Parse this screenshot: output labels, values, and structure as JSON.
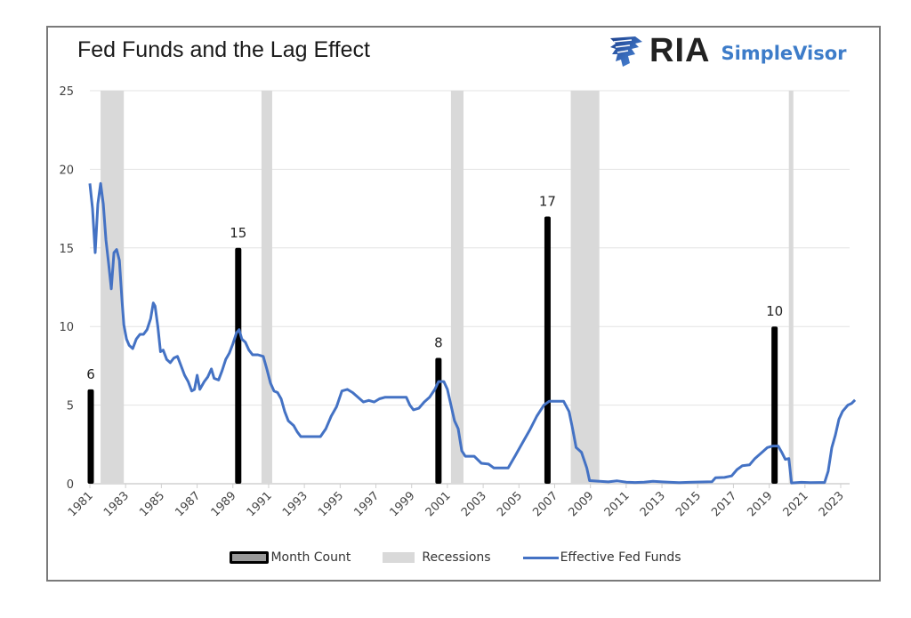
{
  "header": {
    "title": "Fed Funds and the Lag Effect",
    "logo_ria": "RIA",
    "logo_simplevisor": "SimpleVisor"
  },
  "colors": {
    "line": "#4472c4",
    "bars": "#000000",
    "recession": "#d9d9d9",
    "grid": "#e3e3e3"
  },
  "chart_data": {
    "type": "line",
    "title": "Fed Funds and the Lag Effect",
    "xlabel": "",
    "ylabel": "",
    "xlim": [
      1981,
      2024
    ],
    "ylim": [
      0,
      25
    ],
    "grid": true,
    "legend_position": "bottom",
    "y_ticks": [
      "0",
      "5",
      "10",
      "15",
      "20",
      "25"
    ],
    "x_ticks": [
      "1981",
      "1983",
      "1985",
      "1987",
      "1989",
      "1991",
      "1993",
      "1995",
      "1997",
      "1999",
      "2001",
      "2003",
      "2005",
      "2007",
      "2009",
      "2011",
      "2013",
      "2015",
      "2017",
      "2019",
      "2021",
      "2023"
    ],
    "legend": [
      "Month Count",
      "Recessions",
      "Effective Fed Funds"
    ],
    "recessions": [
      [
        1981.6,
        1982.9
      ],
      [
        1990.6,
        1991.2
      ],
      [
        2001.2,
        2001.9
      ],
      [
        2007.9,
        2009.5
      ],
      [
        2020.1,
        2020.35
      ]
    ],
    "month_count_bars": [
      {
        "x": 1981.05,
        "value": 6,
        "label": "6"
      },
      {
        "x": 1989.3,
        "value": 15,
        "label": "15"
      },
      {
        "x": 2000.5,
        "value": 8,
        "label": "8"
      },
      {
        "x": 2006.6,
        "value": 17,
        "label": "17"
      },
      {
        "x": 2019.3,
        "value": 10,
        "label": "10"
      }
    ],
    "series": [
      {
        "name": "Effective Fed Funds",
        "points": [
          [
            1981.0,
            19.1
          ],
          [
            1981.15,
            17.5
          ],
          [
            1981.3,
            14.7
          ],
          [
            1981.45,
            17.8
          ],
          [
            1981.6,
            19.1
          ],
          [
            1981.75,
            17.8
          ],
          [
            1981.9,
            15.5
          ],
          [
            1982.05,
            14.0
          ],
          [
            1982.2,
            12.4
          ],
          [
            1982.35,
            14.7
          ],
          [
            1982.5,
            14.9
          ],
          [
            1982.65,
            14.2
          ],
          [
            1982.8,
            11.6
          ],
          [
            1982.9,
            10.1
          ],
          [
            1983.05,
            9.2
          ],
          [
            1983.2,
            8.8
          ],
          [
            1983.4,
            8.6
          ],
          [
            1983.6,
            9.2
          ],
          [
            1983.8,
            9.5
          ],
          [
            1984.0,
            9.5
          ],
          [
            1984.2,
            9.8
          ],
          [
            1984.4,
            10.5
          ],
          [
            1984.55,
            11.5
          ],
          [
            1984.65,
            11.3
          ],
          [
            1984.8,
            10.0
          ],
          [
            1984.95,
            8.4
          ],
          [
            1985.1,
            8.5
          ],
          [
            1985.3,
            7.9
          ],
          [
            1985.5,
            7.7
          ],
          [
            1985.7,
            8.0
          ],
          [
            1985.9,
            8.1
          ],
          [
            1986.1,
            7.5
          ],
          [
            1986.3,
            6.9
          ],
          [
            1986.5,
            6.5
          ],
          [
            1986.7,
            5.9
          ],
          [
            1986.85,
            6.0
          ],
          [
            1987.0,
            6.9
          ],
          [
            1987.15,
            6.0
          ],
          [
            1987.4,
            6.5
          ],
          [
            1987.6,
            6.8
          ],
          [
            1987.8,
            7.3
          ],
          [
            1987.95,
            6.7
          ],
          [
            1988.2,
            6.6
          ],
          [
            1988.4,
            7.2
          ],
          [
            1988.6,
            7.9
          ],
          [
            1988.8,
            8.3
          ],
          [
            1989.0,
            8.9
          ],
          [
            1989.2,
            9.6
          ],
          [
            1989.35,
            9.8
          ],
          [
            1989.5,
            9.2
          ],
          [
            1989.7,
            9.0
          ],
          [
            1989.9,
            8.5
          ],
          [
            1990.1,
            8.2
          ],
          [
            1990.4,
            8.2
          ],
          [
            1990.7,
            8.1
          ],
          [
            1990.9,
            7.3
          ],
          [
            1991.1,
            6.4
          ],
          [
            1991.3,
            5.9
          ],
          [
            1991.5,
            5.8
          ],
          [
            1991.7,
            5.4
          ],
          [
            1991.9,
            4.6
          ],
          [
            1992.1,
            4.0
          ],
          [
            1992.4,
            3.7
          ],
          [
            1992.6,
            3.3
          ],
          [
            1992.8,
            3.0
          ],
          [
            1993.0,
            3.0
          ],
          [
            1993.3,
            3.0
          ],
          [
            1993.6,
            3.0
          ],
          [
            1993.9,
            3.0
          ],
          [
            1994.2,
            3.5
          ],
          [
            1994.5,
            4.3
          ],
          [
            1994.8,
            4.9
          ],
          [
            1995.1,
            5.9
          ],
          [
            1995.4,
            6.0
          ],
          [
            1995.7,
            5.8
          ],
          [
            1996.0,
            5.5
          ],
          [
            1996.3,
            5.2
          ],
          [
            1996.6,
            5.3
          ],
          [
            1996.9,
            5.2
          ],
          [
            1997.2,
            5.4
          ],
          [
            1997.5,
            5.5
          ],
          [
            1997.8,
            5.5
          ],
          [
            1998.1,
            5.5
          ],
          [
            1998.4,
            5.5
          ],
          [
            1998.7,
            5.5
          ],
          [
            1998.9,
            5.0
          ],
          [
            1999.1,
            4.7
          ],
          [
            1999.4,
            4.8
          ],
          [
            1999.7,
            5.2
          ],
          [
            2000.0,
            5.5
          ],
          [
            2000.3,
            6.0
          ],
          [
            2000.5,
            6.5
          ],
          [
            2000.8,
            6.5
          ],
          [
            2001.0,
            6.0
          ],
          [
            2001.2,
            5.0
          ],
          [
            2001.4,
            4.0
          ],
          [
            2001.6,
            3.5
          ],
          [
            2001.8,
            2.1
          ],
          [
            2002.0,
            1.75
          ],
          [
            2002.5,
            1.75
          ],
          [
            2002.9,
            1.3
          ],
          [
            2003.3,
            1.25
          ],
          [
            2003.6,
            1.0
          ],
          [
            2004.0,
            1.0
          ],
          [
            2004.4,
            1.0
          ],
          [
            2004.8,
            1.8
          ],
          [
            2005.2,
            2.6
          ],
          [
            2005.6,
            3.4
          ],
          [
            2006.0,
            4.3
          ],
          [
            2006.4,
            5.0
          ],
          [
            2006.7,
            5.25
          ],
          [
            2007.0,
            5.25
          ],
          [
            2007.5,
            5.25
          ],
          [
            2007.8,
            4.6
          ],
          [
            2008.0,
            3.5
          ],
          [
            2008.2,
            2.3
          ],
          [
            2008.5,
            2.0
          ],
          [
            2008.8,
            1.0
          ],
          [
            2008.95,
            0.2
          ],
          [
            2009.5,
            0.15
          ],
          [
            2010.0,
            0.12
          ],
          [
            2010.5,
            0.18
          ],
          [
            2011.0,
            0.1
          ],
          [
            2011.5,
            0.08
          ],
          [
            2012.0,
            0.1
          ],
          [
            2012.5,
            0.15
          ],
          [
            2013.0,
            0.12
          ],
          [
            2013.5,
            0.09
          ],
          [
            2014.0,
            0.07
          ],
          [
            2014.5,
            0.09
          ],
          [
            2015.0,
            0.11
          ],
          [
            2015.8,
            0.13
          ],
          [
            2016.0,
            0.38
          ],
          [
            2016.5,
            0.4
          ],
          [
            2016.9,
            0.5
          ],
          [
            2017.2,
            0.9
          ],
          [
            2017.5,
            1.15
          ],
          [
            2017.9,
            1.2
          ],
          [
            2018.2,
            1.6
          ],
          [
            2018.5,
            1.9
          ],
          [
            2018.9,
            2.3
          ],
          [
            2019.2,
            2.4
          ],
          [
            2019.5,
            2.4
          ],
          [
            2019.7,
            2.0
          ],
          [
            2019.9,
            1.55
          ],
          [
            2020.1,
            1.6
          ],
          [
            2020.25,
            0.05
          ],
          [
            2020.8,
            0.09
          ],
          [
            2021.3,
            0.07
          ],
          [
            2021.8,
            0.08
          ],
          [
            2022.1,
            0.08
          ],
          [
            2022.3,
            0.8
          ],
          [
            2022.5,
            2.3
          ],
          [
            2022.7,
            3.1
          ],
          [
            2022.9,
            4.1
          ],
          [
            2023.1,
            4.6
          ],
          [
            2023.4,
            5.0
          ],
          [
            2023.6,
            5.1
          ],
          [
            2023.8,
            5.33
          ]
        ]
      }
    ]
  }
}
